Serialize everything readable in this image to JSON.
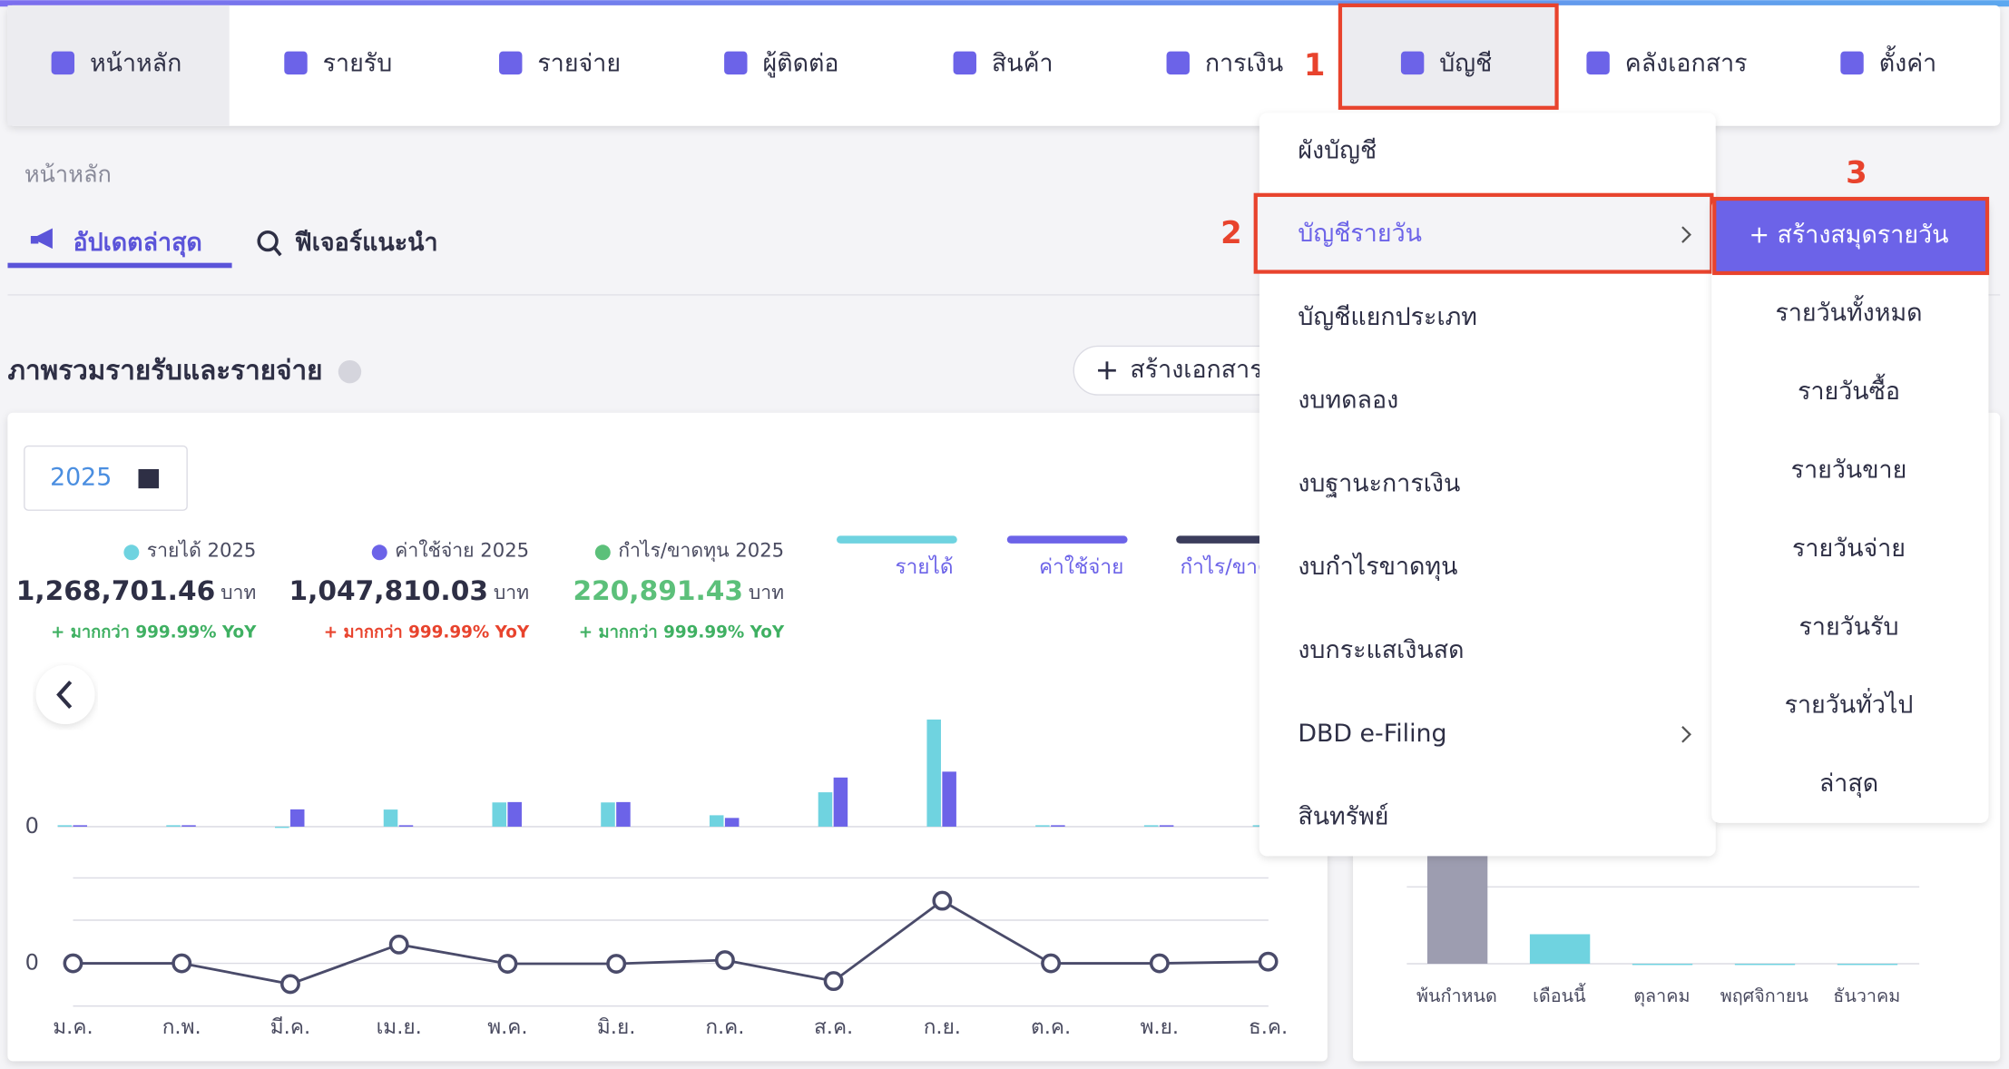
{
  "nav": {
    "items": [
      "หน้าหลัก",
      "รายรับ",
      "รายจ่าย",
      "ผู้ติดต่อ",
      "สินค้า",
      "การเงิน",
      "บัญชี",
      "คลังเอกสาร",
      "ตั้งค่า"
    ]
  },
  "annotations": [
    "1",
    "2",
    "3"
  ],
  "breadcrumb": "หน้าหลัก",
  "tabs": [
    "อัปเดตล่าสุด",
    "ฟีเจอร์แนะนำ"
  ],
  "section_title": "ภาพรวมรายรับและรายจ่าย",
  "create_button": "สร้างเอกสาร",
  "year_picker": "2025",
  "summary": [
    {
      "label": "รายได้ 2025",
      "amount": "1,268,701.46",
      "unit": "บาท",
      "change": "+ มากกว่า 999.99% YoY"
    },
    {
      "label": "ค่าใช้จ่าย 2025",
      "amount": "1,047,810.03",
      "unit": "บาท",
      "change": "+ มากกว่า 999.99% YoY"
    },
    {
      "label": "กำไร/ขาดทุน 2025",
      "amount": "220,891.43",
      "unit": "บาท",
      "change": "+ มากกว่า 999.99% YoY"
    }
  ],
  "account_menu": [
    "ผังบัญชี",
    "บัญชีรายวัน",
    "บัญชีแยกประเภท",
    "งบทดลอง",
    "งบฐานะการเงิน",
    "งบกำไรขาดทุน",
    "งบกระแสเงินสด",
    "DBD e-Filing",
    "สินทรัพย์"
  ],
  "journal_submenu": {
    "create_button": "+ สร้างสมุดรายวัน",
    "items": [
      "รายวันทั้งหมด",
      "รายวันซื้อ",
      "รายวันขาย",
      "รายวันจ่าย",
      "รายวันรับ",
      "รายวันทั่วไป",
      "ล่าสุด"
    ]
  },
  "chart_data": [
    {
      "type": "bar",
      "categories": [
        "ม.ค.",
        "ก.พ.",
        "มี.ค.",
        "เม.ย.",
        "พ.ค.",
        "มิ.ย.",
        "ก.ค.",
        "ส.ค.",
        "ก.ย.",
        "ต.ค.",
        "พ.ย.",
        "ธ.ค."
      ],
      "series": [
        {
          "name": "รายได้",
          "color": "#6fd3e0",
          "values": [
            8000,
            8000,
            0,
            96000,
            136000,
            136000,
            64000,
            193000,
            602000,
            8000,
            8000,
            8000
          ]
        },
        {
          "name": "ค่าใช้จ่าย",
          "color": "#6c63e8",
          "values": [
            8000,
            8000,
            97000,
            8000,
            138000,
            138000,
            49000,
            276000,
            309000,
            8000,
            8000,
            0
          ]
        },
        {
          "name": "กำไร/ขาดทุน",
          "color": "#3b3d5c",
          "type": "line",
          "axis": "y2",
          "values": [
            0,
            0,
            -97000,
            88000,
            -2000,
            -2000,
            15000,
            -83000,
            293000,
            0,
            0,
            8000
          ]
        }
      ],
      "ylim": [
        0,
        900000
      ],
      "yticks": [
        0
      ],
      "y2lim": [
        -200000,
        400000
      ],
      "y2ticks": [
        0
      ]
    },
    {
      "type": "bar",
      "categories": [
        "พ้นกำหนด",
        "เดือนนี้",
        "ตุลาคม",
        "พฤศจิกายน",
        "ธันวาคม"
      ],
      "values": [
        200000,
        36000,
        0,
        0,
        0
      ],
      "colors": [
        "#9d9db0",
        "#6fd3e0",
        "#6fd3e0",
        "#6fd3e0",
        "#6fd3e0"
      ],
      "ylim": [
        0,
        300000
      ]
    }
  ]
}
